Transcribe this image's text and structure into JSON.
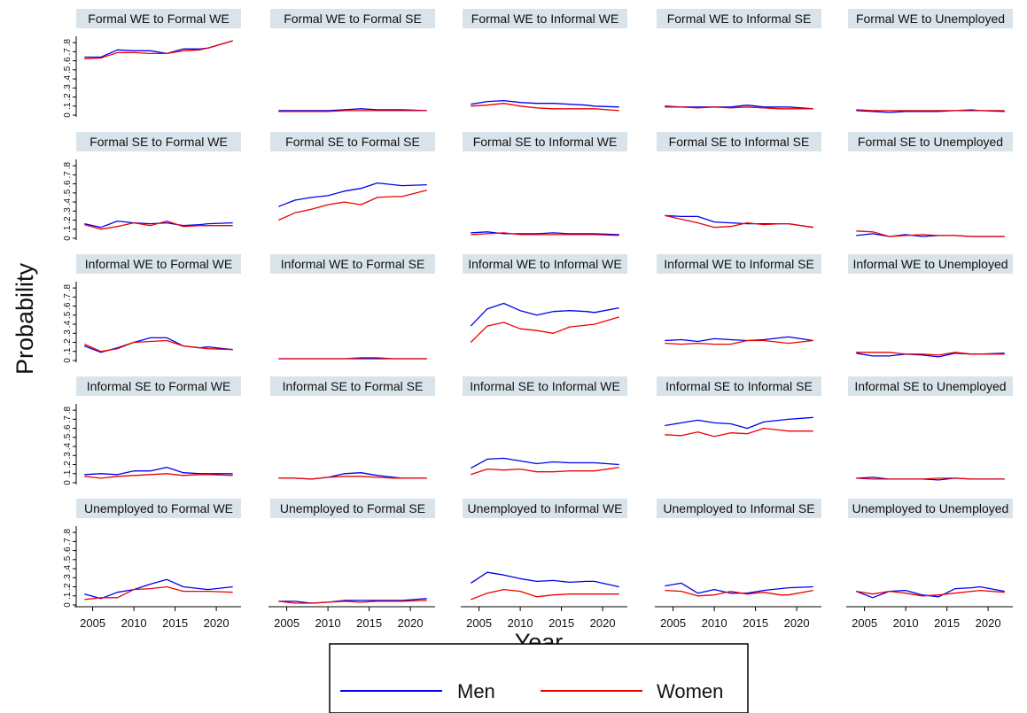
{
  "chart_data": {
    "type": "line",
    "xlabel": "Year",
    "ylabel": "Probability",
    "x": [
      2004,
      2006,
      2008,
      2010,
      2012,
      2014,
      2016,
      2018,
      2019,
      2022
    ],
    "xticks": [
      2005,
      2010,
      2015,
      2020
    ],
    "xlim": [
      2003,
      2023
    ],
    "yticks": [
      "0",
      ".1",
      ".2",
      ".3",
      ".4",
      ".5",
      ".6",
      ".7",
      ".8"
    ],
    "ylim": [
      0,
      0.85
    ],
    "legend": {
      "position": "bottom-center",
      "entries": [
        {
          "label": "Men",
          "color": "#0000ee"
        },
        {
          "label": "Women",
          "color": "#ee0000"
        }
      ]
    },
    "panel_style": {
      "title_background": "#d9e4ea",
      "frame": "#000000"
    },
    "panels": [
      {
        "title": "Formal WE to Formal WE",
        "series": [
          {
            "name": "Men",
            "values": [
              0.64,
              0.64,
              0.72,
              0.71,
              0.71,
              0.68,
              0.73,
              0.73,
              0.74,
              0.82
            ]
          },
          {
            "name": "Women",
            "values": [
              0.62,
              0.63,
              0.69,
              0.69,
              0.68,
              0.68,
              0.71,
              0.72,
              0.74,
              0.82
            ]
          }
        ]
      },
      {
        "title": "Formal WE to Formal SE",
        "series": [
          {
            "name": "Men",
            "values": [
              0.05,
              0.05,
              0.05,
              0.05,
              0.06,
              0.07,
              0.06,
              0.06,
              0.06,
              0.05
            ]
          },
          {
            "name": "Women",
            "values": [
              0.04,
              0.04,
              0.04,
              0.04,
              0.05,
              0.05,
              0.05,
              0.05,
              0.05,
              0.05
            ]
          }
        ]
      },
      {
        "title": "Formal WE to Informal WE",
        "series": [
          {
            "name": "Men",
            "values": [
              0.12,
              0.15,
              0.16,
              0.14,
              0.13,
              0.13,
              0.12,
              0.11,
              0.1,
              0.09
            ]
          },
          {
            "name": "Women",
            "values": [
              0.1,
              0.11,
              0.13,
              0.1,
              0.08,
              0.07,
              0.07,
              0.07,
              0.07,
              0.05
            ]
          }
        ]
      },
      {
        "title": "Formal WE to Informal SE",
        "series": [
          {
            "name": "Men",
            "values": [
              0.1,
              0.09,
              0.09,
              0.09,
              0.09,
              0.11,
              0.09,
              0.09,
              0.09,
              0.07
            ]
          },
          {
            "name": "Women",
            "values": [
              0.09,
              0.09,
              0.08,
              0.09,
              0.08,
              0.09,
              0.08,
              0.07,
              0.07,
              0.07
            ]
          }
        ]
      },
      {
        "title": "Formal WE to Unemployed",
        "series": [
          {
            "name": "Men",
            "values": [
              0.05,
              0.04,
              0.03,
              0.04,
              0.04,
              0.04,
              0.05,
              0.05,
              0.05,
              0.04
            ]
          },
          {
            "name": "Women",
            "values": [
              0.06,
              0.05,
              0.05,
              0.05,
              0.05,
              0.05,
              0.05,
              0.06,
              0.05,
              0.05
            ]
          }
        ]
      },
      {
        "title": "Formal SE to Formal WE",
        "series": [
          {
            "name": "Men",
            "values": [
              0.16,
              0.12,
              0.19,
              0.17,
              0.16,
              0.17,
              0.14,
              0.15,
              0.16,
              0.17
            ]
          },
          {
            "name": "Women",
            "values": [
              0.15,
              0.1,
              0.13,
              0.17,
              0.14,
              0.19,
              0.13,
              0.14,
              0.14,
              0.14
            ]
          }
        ]
      },
      {
        "title": "Formal SE to Formal SE",
        "series": [
          {
            "name": "Men",
            "values": [
              0.35,
              0.42,
              0.45,
              0.47,
              0.52,
              0.55,
              0.61,
              0.59,
              0.58,
              0.59
            ]
          },
          {
            "name": "Women",
            "values": [
              0.2,
              0.28,
              0.32,
              0.37,
              0.4,
              0.37,
              0.45,
              0.46,
              0.46,
              0.53
            ]
          }
        ]
      },
      {
        "title": "Formal SE to Informal WE",
        "series": [
          {
            "name": "Men",
            "values": [
              0.06,
              0.07,
              0.05,
              0.05,
              0.05,
              0.06,
              0.05,
              0.05,
              0.05,
              0.04
            ]
          },
          {
            "name": "Women",
            "values": [
              0.04,
              0.05,
              0.06,
              0.04,
              0.04,
              0.04,
              0.04,
              0.04,
              0.04,
              0.03
            ]
          }
        ]
      },
      {
        "title": "Formal SE to Informal SE",
        "series": [
          {
            "name": "Men",
            "values": [
              0.25,
              0.24,
              0.24,
              0.18,
              0.17,
              0.16,
              0.16,
              0.16,
              0.16,
              0.12
            ]
          },
          {
            "name": "Women",
            "values": [
              0.25,
              0.21,
              0.17,
              0.12,
              0.13,
              0.17,
              0.15,
              0.16,
              0.16,
              0.12
            ]
          }
        ]
      },
      {
        "title": "Formal SE to Unemployed",
        "series": [
          {
            "name": "Men",
            "values": [
              0.03,
              0.05,
              0.02,
              0.04,
              0.02,
              0.03,
              0.03,
              0.02,
              0.02,
              0.02
            ]
          },
          {
            "name": "Women",
            "values": [
              0.08,
              0.07,
              0.02,
              0.03,
              0.04,
              0.03,
              0.03,
              0.02,
              0.02,
              0.02
            ]
          }
        ]
      },
      {
        "title": "Informal WE to Formal WE",
        "series": [
          {
            "name": "Men",
            "values": [
              0.16,
              0.09,
              0.14,
              0.2,
              0.25,
              0.25,
              0.16,
              0.14,
              0.15,
              0.12
            ]
          },
          {
            "name": "Women",
            "values": [
              0.18,
              0.1,
              0.13,
              0.2,
              0.21,
              0.22,
              0.16,
              0.14,
              0.13,
              0.12
            ]
          }
        ]
      },
      {
        "title": "Informal WE to Formal SE",
        "series": [
          {
            "name": "Men",
            "values": [
              0.02,
              0.02,
              0.02,
              0.02,
              0.02,
              0.02,
              0.02,
              0.02,
              0.02,
              0.02
            ]
          },
          {
            "name": "Women",
            "values": [
              0.02,
              0.02,
              0.02,
              0.02,
              0.02,
              0.03,
              0.03,
              0.02,
              0.02,
              0.02
            ]
          }
        ]
      },
      {
        "title": "Informal WE to Informal WE",
        "series": [
          {
            "name": "Men",
            "values": [
              0.38,
              0.57,
              0.63,
              0.55,
              0.5,
              0.54,
              0.55,
              0.54,
              0.53,
              0.58
            ]
          },
          {
            "name": "Women",
            "values": [
              0.2,
              0.38,
              0.42,
              0.35,
              0.33,
              0.3,
              0.37,
              0.39,
              0.4,
              0.48
            ]
          }
        ]
      },
      {
        "title": "Informal WE to Informal SE",
        "series": [
          {
            "name": "Men",
            "values": [
              0.22,
              0.23,
              0.21,
              0.24,
              0.23,
              0.22,
              0.23,
              0.25,
              0.26,
              0.22
            ]
          },
          {
            "name": "Women",
            "values": [
              0.19,
              0.18,
              0.19,
              0.18,
              0.18,
              0.22,
              0.22,
              0.2,
              0.19,
              0.22
            ]
          }
        ]
      },
      {
        "title": "Informal WE to Unemployed",
        "series": [
          {
            "name": "Men",
            "values": [
              0.08,
              0.05,
              0.05,
              0.07,
              0.06,
              0.04,
              0.08,
              0.07,
              0.07,
              0.08
            ]
          },
          {
            "name": "Women",
            "values": [
              0.09,
              0.09,
              0.09,
              0.07,
              0.07,
              0.06,
              0.09,
              0.07,
              0.07,
              0.07
            ]
          }
        ]
      },
      {
        "title": "Informal SE to Formal WE",
        "series": [
          {
            "name": "Men",
            "values": [
              0.09,
              0.1,
              0.09,
              0.13,
              0.13,
              0.17,
              0.11,
              0.1,
              0.1,
              0.1
            ]
          },
          {
            "name": "Women",
            "values": [
              0.07,
              0.05,
              0.07,
              0.08,
              0.09,
              0.1,
              0.08,
              0.09,
              0.09,
              0.08
            ]
          }
        ]
      },
      {
        "title": "Informal SE to Formal SE",
        "series": [
          {
            "name": "Men",
            "values": [
              0.05,
              0.05,
              0.04,
              0.06,
              0.1,
              0.11,
              0.08,
              0.06,
              0.05,
              0.05
            ]
          },
          {
            "name": "Women",
            "values": [
              0.05,
              0.05,
              0.04,
              0.06,
              0.07,
              0.07,
              0.06,
              0.05,
              0.05,
              0.05
            ]
          }
        ]
      },
      {
        "title": "Informal SE to Informal WE",
        "series": [
          {
            "name": "Men",
            "values": [
              0.16,
              0.26,
              0.27,
              0.24,
              0.21,
              0.23,
              0.22,
              0.22,
              0.22,
              0.2
            ]
          },
          {
            "name": "Women",
            "values": [
              0.09,
              0.15,
              0.14,
              0.15,
              0.12,
              0.12,
              0.13,
              0.13,
              0.13,
              0.17
            ]
          }
        ]
      },
      {
        "title": "Informal SE to Informal SE",
        "series": [
          {
            "name": "Men",
            "values": [
              0.63,
              0.66,
              0.69,
              0.66,
              0.65,
              0.6,
              0.67,
              0.69,
              0.7,
              0.72
            ]
          },
          {
            "name": "Women",
            "values": [
              0.53,
              0.52,
              0.56,
              0.51,
              0.55,
              0.54,
              0.6,
              0.58,
              0.57,
              0.57
            ]
          }
        ]
      },
      {
        "title": "Informal SE to Unemployed",
        "series": [
          {
            "name": "Men",
            "values": [
              0.05,
              0.06,
              0.04,
              0.04,
              0.04,
              0.03,
              0.05,
              0.04,
              0.04,
              0.04
            ]
          },
          {
            "name": "Women",
            "values": [
              0.05,
              0.04,
              0.04,
              0.04,
              0.04,
              0.05,
              0.05,
              0.04,
              0.04,
              0.04
            ]
          }
        ]
      },
      {
        "title": "Unemployed to Formal WE",
        "series": [
          {
            "name": "Men",
            "values": [
              0.12,
              0.07,
              0.14,
              0.17,
              0.23,
              0.28,
              0.2,
              0.18,
              0.17,
              0.2
            ]
          },
          {
            "name": "Women",
            "values": [
              0.06,
              0.08,
              0.08,
              0.17,
              0.18,
              0.2,
              0.15,
              0.15,
              0.15,
              0.14
            ]
          }
        ]
      },
      {
        "title": "Unemployed to Formal SE",
        "series": [
          {
            "name": "Men",
            "values": [
              0.04,
              0.04,
              0.02,
              0.03,
              0.05,
              0.05,
              0.05,
              0.05,
              0.05,
              0.07
            ]
          },
          {
            "name": "Women",
            "values": [
              0.04,
              0.02,
              0.02,
              0.03,
              0.04,
              0.03,
              0.04,
              0.04,
              0.04,
              0.05
            ]
          }
        ]
      },
      {
        "title": "Unemployed to Informal WE",
        "series": [
          {
            "name": "Men",
            "values": [
              0.24,
              0.36,
              0.33,
              0.29,
              0.26,
              0.27,
              0.25,
              0.26,
              0.26,
              0.2
            ]
          },
          {
            "name": "Women",
            "values": [
              0.06,
              0.13,
              0.17,
              0.15,
              0.09,
              0.11,
              0.12,
              0.12,
              0.12,
              0.12
            ]
          }
        ]
      },
      {
        "title": "Unemployed to Informal SE",
        "series": [
          {
            "name": "Men",
            "values": [
              0.21,
              0.24,
              0.13,
              0.17,
              0.13,
              0.13,
              0.16,
              0.18,
              0.19,
              0.2
            ]
          },
          {
            "name": "Women",
            "values": [
              0.16,
              0.15,
              0.1,
              0.11,
              0.15,
              0.12,
              0.14,
              0.11,
              0.11,
              0.16
            ]
          }
        ]
      },
      {
        "title": "Unemployed to Unemployed",
        "series": [
          {
            "name": "Men",
            "values": [
              0.15,
              0.08,
              0.15,
              0.16,
              0.11,
              0.09,
              0.18,
              0.19,
              0.2,
              0.15
            ]
          },
          {
            "name": "Women",
            "values": [
              0.15,
              0.12,
              0.15,
              0.13,
              0.1,
              0.11,
              0.13,
              0.15,
              0.16,
              0.14
            ]
          }
        ]
      }
    ]
  }
}
